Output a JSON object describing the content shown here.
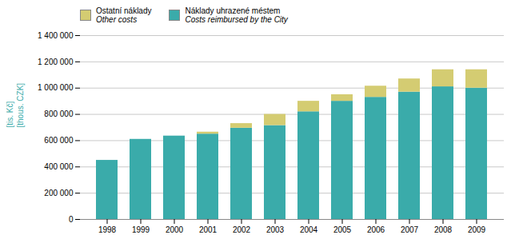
{
  "chart_data": {
    "type": "bar",
    "stacked": true,
    "categories": [
      "1998",
      "1999",
      "2000",
      "2001",
      "2002",
      "2003",
      "2004",
      "2005",
      "2006",
      "2007",
      "2008",
      "2009"
    ],
    "series": [
      {
        "name": "Náklady uhrazené méstem\nCosts reimbursed by the City",
        "color": "#3aabaa",
        "values": [
          450000,
          610000,
          635000,
          650000,
          695000,
          715000,
          820000,
          900000,
          930000,
          970000,
          1010000,
          1000000
        ]
      },
      {
        "name": "Ostatní náklady\nOther costs",
        "color": "#d4cc72",
        "values": [
          0,
          0,
          0,
          15000,
          35000,
          85000,
          80000,
          50000,
          85000,
          100000,
          130000,
          140000
        ]
      }
    ],
    "ylabel": "[tis. Kč]\n[thous. CZK]",
    "ylim": [
      0,
      1400000
    ],
    "yticks": [
      0,
      {
        "value": 200000,
        "label": "200 000"
      },
      {
        "value": 400000,
        "label": "400 000"
      },
      {
        "value": 600000,
        "label": "600 000"
      },
      {
        "value": 800000,
        "label": "800 000"
      },
      {
        "value": 1000000,
        "label": "1 000 000"
      },
      {
        "value": 1200000,
        "label": "1 200 000"
      },
      {
        "value": 1400000,
        "label": "1 400 000"
      }
    ],
    "grid": true,
    "legend": "upper left"
  }
}
